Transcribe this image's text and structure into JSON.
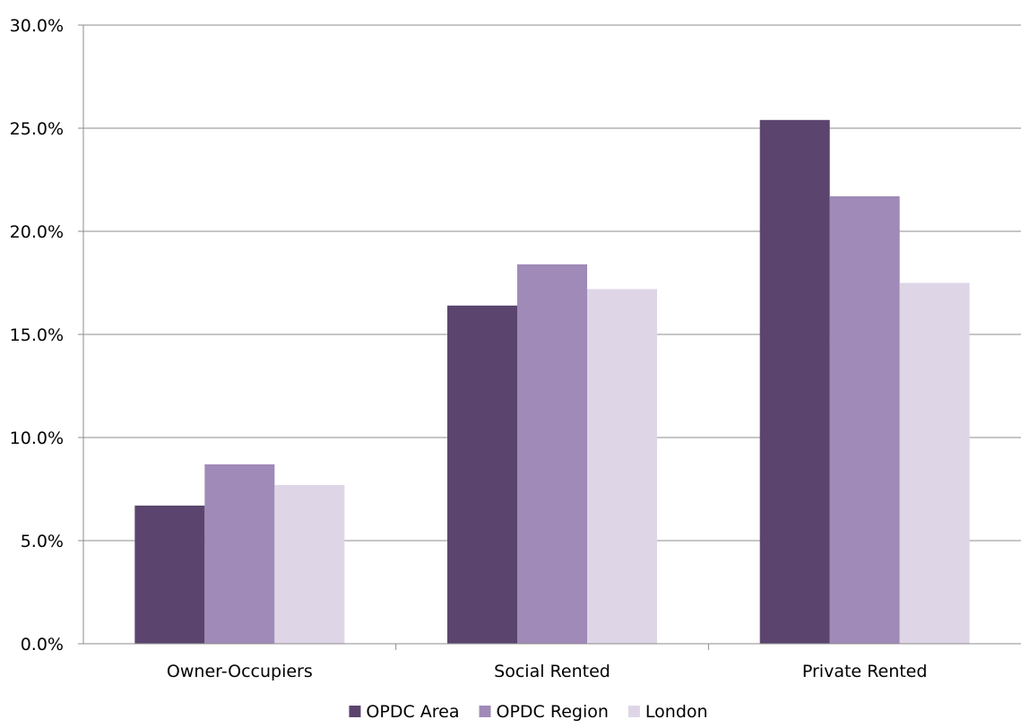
{
  "chart_data": {
    "type": "bar",
    "categories": [
      "Owner-Occupiers",
      "Social Rented",
      "Private Rented"
    ],
    "series": [
      {
        "name": "OPDC Area",
        "values": [
          6.7,
          16.4,
          25.4
        ],
        "color": "#5b456e"
      },
      {
        "name": "OPDC Region",
        "values": [
          8.7,
          18.4,
          21.7
        ],
        "color": "#9f8ab8"
      },
      {
        "name": "London",
        "values": [
          7.7,
          17.2,
          17.5
        ],
        "color": "#ded6e6"
      }
    ],
    "ylim": [
      0,
      30
    ],
    "yticks": [
      0,
      5,
      10,
      15,
      20,
      25,
      30
    ],
    "ytick_labels": [
      "0.0%",
      "5.0%",
      "10.0%",
      "15.0%",
      "20.0%",
      "25.0%",
      "30.0%"
    ],
    "grid": true,
    "legend_position": "bottom",
    "title": "",
    "xlabel": "",
    "ylabel": ""
  }
}
